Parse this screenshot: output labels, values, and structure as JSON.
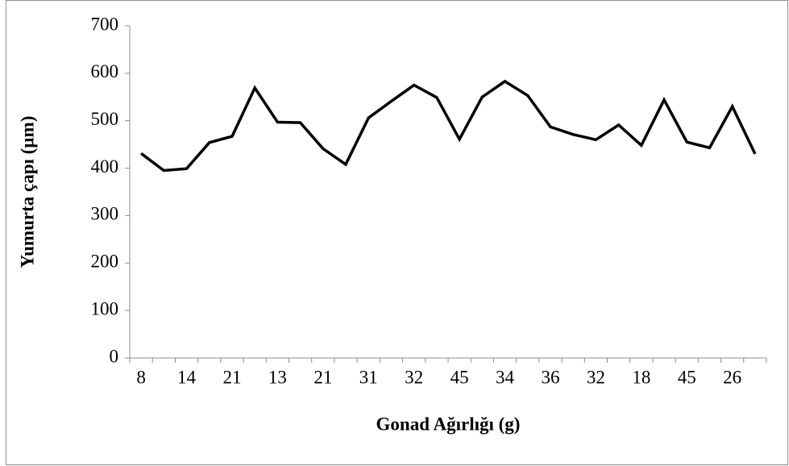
{
  "chart_data": {
    "type": "line",
    "y_label": "Yumurta çapı  (µm)",
    "x_label": "Gonad Ağırlığı (g)",
    "categories": [
      "8",
      null,
      "14",
      null,
      "21",
      null,
      "13",
      null,
      "21",
      null,
      "31",
      null,
      "32",
      null,
      "45",
      null,
      "34",
      null,
      "36",
      null,
      "32",
      null,
      "18",
      null,
      "45",
      null,
      "26",
      null
    ],
    "values": [
      431,
      395,
      399,
      454,
      467,
      569,
      497,
      496,
      441,
      408,
      506,
      541,
      575,
      549,
      461,
      550,
      583,
      553,
      487,
      471,
      460,
      491,
      448,
      544,
      455,
      443,
      530,
      430
    ],
    "color": "#000000",
    "ylim": [
      0,
      700
    ],
    "yticks": [
      0,
      100,
      200,
      300,
      400,
      500,
      600,
      700
    ]
  }
}
